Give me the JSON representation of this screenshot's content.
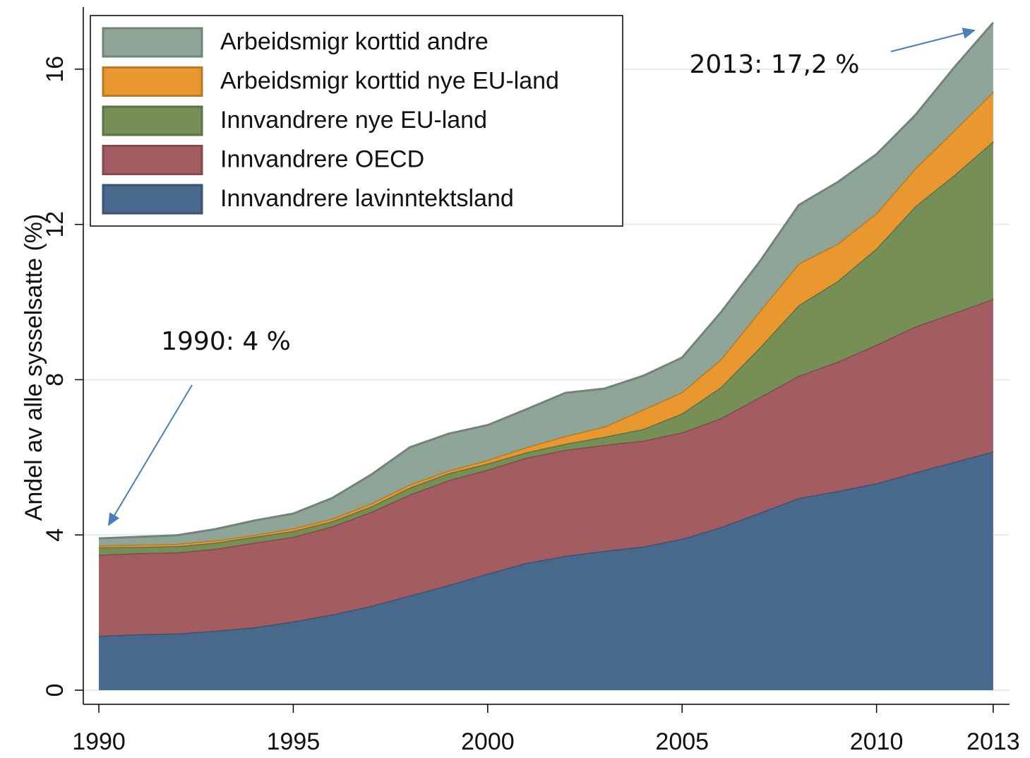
{
  "chart_data": {
    "type": "stacked_area",
    "y_label": "Andel av alle sysselsatte (%)",
    "x": [
      1990,
      1991,
      1992,
      1993,
      1994,
      1995,
      1996,
      1997,
      1998,
      1999,
      2000,
      2001,
      2002,
      2003,
      2004,
      2005,
      2006,
      2007,
      2008,
      2009,
      2010,
      2011,
      2012,
      2013
    ],
    "series": [
      {
        "name": "Innvandrere lavinntektsland",
        "color": "#48698c",
        "values": [
          1.4,
          1.44,
          1.46,
          1.53,
          1.62,
          1.77,
          1.95,
          2.17,
          2.44,
          2.71,
          3.0,
          3.28,
          3.46,
          3.59,
          3.7,
          3.9,
          4.2,
          4.57,
          4.95,
          5.13,
          5.33,
          5.61,
          5.88,
          6.15
        ]
      },
      {
        "name": "Innvandrere OECD",
        "color": "#a35c60",
        "values": [
          2.09,
          2.09,
          2.09,
          2.11,
          2.18,
          2.18,
          2.27,
          2.42,
          2.6,
          2.7,
          2.68,
          2.71,
          2.73,
          2.73,
          2.73,
          2.74,
          2.81,
          2.98,
          3.15,
          3.33,
          3.57,
          3.76,
          3.84,
          3.93
        ]
      },
      {
        "name": "Innvandrere nye EU-land",
        "color": "#768f56",
        "values": [
          0.19,
          0.16,
          0.16,
          0.16,
          0.15,
          0.15,
          0.13,
          0.14,
          0.18,
          0.18,
          0.16,
          0.14,
          0.16,
          0.21,
          0.3,
          0.49,
          0.8,
          1.28,
          1.82,
          2.08,
          2.48,
          3.1,
          3.55,
          4.06
        ]
      },
      {
        "name": "Arbeidsmigr korttid nye EU-land",
        "color": "#e8982e",
        "values": [
          0.05,
          0.06,
          0.06,
          0.06,
          0.05,
          0.07,
          0.07,
          0.08,
          0.08,
          0.07,
          0.09,
          0.13,
          0.2,
          0.26,
          0.5,
          0.55,
          0.72,
          0.94,
          1.07,
          0.96,
          0.91,
          0.98,
          1.15,
          1.28
        ]
      },
      {
        "name": "Arbeidsmigr korttid andre",
        "color": "#8ea598",
        "values": [
          0.18,
          0.2,
          0.22,
          0.29,
          0.37,
          0.38,
          0.53,
          0.74,
          0.96,
          0.95,
          0.9,
          0.98,
          1.11,
          0.98,
          0.87,
          0.89,
          1.21,
          1.28,
          1.51,
          1.59,
          1.52,
          1.37,
          1.63,
          1.78
        ]
      }
    ],
    "xlim": [
      1989.6,
      2013.42
    ],
    "xticks": [
      1990,
      1995,
      2000,
      2005,
      2010,
      2013
    ],
    "ylim": [
      0,
      17.6
    ],
    "yticks": [
      0,
      4,
      8,
      12,
      16
    ],
    "grid": true,
    "annotations": [
      "1990: 4 %",
      "2013: 17,2 %"
    ]
  }
}
